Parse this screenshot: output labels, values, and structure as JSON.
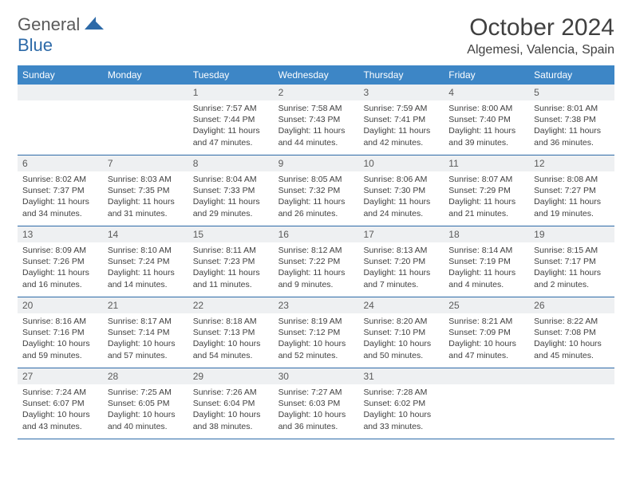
{
  "brand": {
    "part1": "General",
    "part2": "Blue"
  },
  "title": "October 2024",
  "location": "Algemesi, Valencia, Spain",
  "colors": {
    "header_bg": "#3d86c6",
    "header_text": "#ffffff",
    "daynum_bg": "#eef0f2",
    "border": "#2d6aa8",
    "text": "#404040",
    "brand_gray": "#5a5a5a",
    "brand_blue": "#2d6aa8"
  },
  "weekdays": [
    "Sunday",
    "Monday",
    "Tuesday",
    "Wednesday",
    "Thursday",
    "Friday",
    "Saturday"
  ],
  "weeks": [
    [
      null,
      null,
      {
        "n": "1",
        "sr": "7:57 AM",
        "ss": "7:44 PM",
        "dl": "11 hours and 47 minutes."
      },
      {
        "n": "2",
        "sr": "7:58 AM",
        "ss": "7:43 PM",
        "dl": "11 hours and 44 minutes."
      },
      {
        "n": "3",
        "sr": "7:59 AM",
        "ss": "7:41 PM",
        "dl": "11 hours and 42 minutes."
      },
      {
        "n": "4",
        "sr": "8:00 AM",
        "ss": "7:40 PM",
        "dl": "11 hours and 39 minutes."
      },
      {
        "n": "5",
        "sr": "8:01 AM",
        "ss": "7:38 PM",
        "dl": "11 hours and 36 minutes."
      }
    ],
    [
      {
        "n": "6",
        "sr": "8:02 AM",
        "ss": "7:37 PM",
        "dl": "11 hours and 34 minutes."
      },
      {
        "n": "7",
        "sr": "8:03 AM",
        "ss": "7:35 PM",
        "dl": "11 hours and 31 minutes."
      },
      {
        "n": "8",
        "sr": "8:04 AM",
        "ss": "7:33 PM",
        "dl": "11 hours and 29 minutes."
      },
      {
        "n": "9",
        "sr": "8:05 AM",
        "ss": "7:32 PM",
        "dl": "11 hours and 26 minutes."
      },
      {
        "n": "10",
        "sr": "8:06 AM",
        "ss": "7:30 PM",
        "dl": "11 hours and 24 minutes."
      },
      {
        "n": "11",
        "sr": "8:07 AM",
        "ss": "7:29 PM",
        "dl": "11 hours and 21 minutes."
      },
      {
        "n": "12",
        "sr": "8:08 AM",
        "ss": "7:27 PM",
        "dl": "11 hours and 19 minutes."
      }
    ],
    [
      {
        "n": "13",
        "sr": "8:09 AM",
        "ss": "7:26 PM",
        "dl": "11 hours and 16 minutes."
      },
      {
        "n": "14",
        "sr": "8:10 AM",
        "ss": "7:24 PM",
        "dl": "11 hours and 14 minutes."
      },
      {
        "n": "15",
        "sr": "8:11 AM",
        "ss": "7:23 PM",
        "dl": "11 hours and 11 minutes."
      },
      {
        "n": "16",
        "sr": "8:12 AM",
        "ss": "7:22 PM",
        "dl": "11 hours and 9 minutes."
      },
      {
        "n": "17",
        "sr": "8:13 AM",
        "ss": "7:20 PM",
        "dl": "11 hours and 7 minutes."
      },
      {
        "n": "18",
        "sr": "8:14 AM",
        "ss": "7:19 PM",
        "dl": "11 hours and 4 minutes."
      },
      {
        "n": "19",
        "sr": "8:15 AM",
        "ss": "7:17 PM",
        "dl": "11 hours and 2 minutes."
      }
    ],
    [
      {
        "n": "20",
        "sr": "8:16 AM",
        "ss": "7:16 PM",
        "dl": "10 hours and 59 minutes."
      },
      {
        "n": "21",
        "sr": "8:17 AM",
        "ss": "7:14 PM",
        "dl": "10 hours and 57 minutes."
      },
      {
        "n": "22",
        "sr": "8:18 AM",
        "ss": "7:13 PM",
        "dl": "10 hours and 54 minutes."
      },
      {
        "n": "23",
        "sr": "8:19 AM",
        "ss": "7:12 PM",
        "dl": "10 hours and 52 minutes."
      },
      {
        "n": "24",
        "sr": "8:20 AM",
        "ss": "7:10 PM",
        "dl": "10 hours and 50 minutes."
      },
      {
        "n": "25",
        "sr": "8:21 AM",
        "ss": "7:09 PM",
        "dl": "10 hours and 47 minutes."
      },
      {
        "n": "26",
        "sr": "8:22 AM",
        "ss": "7:08 PM",
        "dl": "10 hours and 45 minutes."
      }
    ],
    [
      {
        "n": "27",
        "sr": "7:24 AM",
        "ss": "6:07 PM",
        "dl": "10 hours and 43 minutes."
      },
      {
        "n": "28",
        "sr": "7:25 AM",
        "ss": "6:05 PM",
        "dl": "10 hours and 40 minutes."
      },
      {
        "n": "29",
        "sr": "7:26 AM",
        "ss": "6:04 PM",
        "dl": "10 hours and 38 minutes."
      },
      {
        "n": "30",
        "sr": "7:27 AM",
        "ss": "6:03 PM",
        "dl": "10 hours and 36 minutes."
      },
      {
        "n": "31",
        "sr": "7:28 AM",
        "ss": "6:02 PM",
        "dl": "10 hours and 33 minutes."
      },
      null,
      null
    ]
  ],
  "labels": {
    "sunrise": "Sunrise:",
    "sunset": "Sunset:",
    "daylight": "Daylight:"
  }
}
